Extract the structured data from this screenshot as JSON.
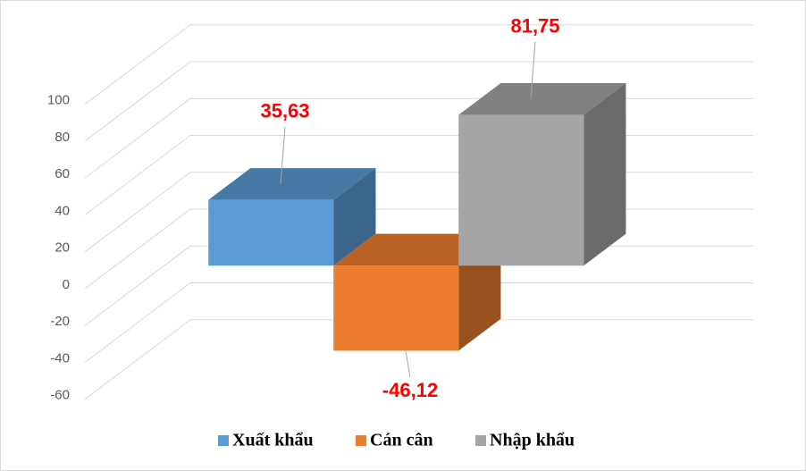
{
  "chart_data": {
    "type": "bar3d",
    "series": [
      {
        "name": "Xuất khẩu",
        "color": "#5b9bd5",
        "values": [
          35.63
        ],
        "value_labels": [
          "35,63"
        ]
      },
      {
        "name": "Cán cân",
        "color": "#ed7d31",
        "values": [
          -46.12
        ],
        "value_labels": [
          "-46,12"
        ]
      },
      {
        "name": "Nhập khẩu",
        "color": "#a5a5a5",
        "values": [
          81.75
        ],
        "value_labels": [
          "81,75"
        ]
      }
    ],
    "ylim": [
      -60,
      100
    ],
    "yticks": [
      -60,
      -40,
      -20,
      0,
      20,
      40,
      60,
      80,
      100
    ],
    "grid": true,
    "legend": "bottom"
  }
}
